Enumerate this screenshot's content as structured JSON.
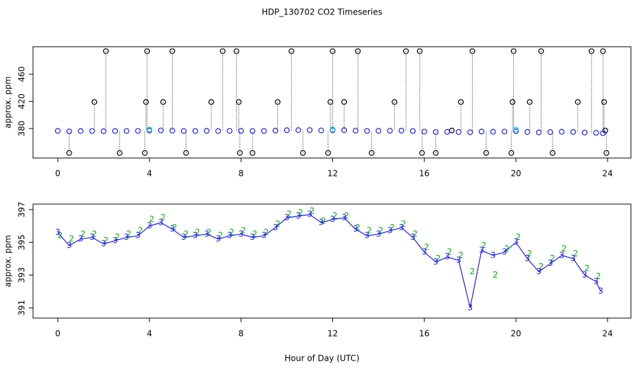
{
  "chart_data": [
    {
      "type": "scatter",
      "title": "HDP_130702  CO2 Timeseries",
      "ylabel": "approx. ppm",
      "xlim": [
        -1.08,
        25.02
      ],
      "xticks": [
        0,
        4,
        8,
        12,
        16,
        20,
        24
      ],
      "ylim": [
        336.5,
        500.5
      ],
      "yticks": [
        380,
        420,
        460
      ],
      "series": [
        {
          "color": "#000000",
          "marker": "circle",
          "drop_lines": true,
          "x": [
            0.5,
            1.6,
            2.1,
            2.7,
            3.8,
            3.85,
            3.9,
            4.6,
            5.0,
            5.6,
            6.7,
            7.2,
            7.8,
            7.9,
            7.95,
            8.5,
            9.6,
            10.2,
            10.7,
            11.8,
            11.9,
            12.0,
            12.5,
            13.1,
            13.7,
            14.7,
            15.2,
            15.8,
            15.9,
            16.5,
            17.2,
            17.6,
            18.1,
            18.7,
            19.8,
            19.85,
            19.9,
            20.6,
            21.1,
            21.6,
            22.7,
            23.3,
            23.8,
            23.85,
            23.9,
            23.95
          ],
          "values": [
            344,
            419,
            494,
            344,
            344,
            419,
            494,
            419,
            494,
            344,
            419,
            494,
            494,
            419,
            344,
            344,
            419,
            494,
            344,
            344,
            419,
            494,
            419,
            494,
            344,
            419,
            494,
            494,
            344,
            344,
            377,
            419,
            494,
            344,
            344,
            419,
            494,
            419,
            494,
            344,
            419,
            494,
            494,
            419,
            377,
            344
          ]
        },
        {
          "color": "#1a1aff",
          "marker": "circle",
          "x": [
            0,
            0.5,
            1,
            1.5,
            2,
            2.5,
            3,
            3.5,
            4,
            4.5,
            5,
            5.5,
            6,
            6.5,
            7,
            7.5,
            8,
            8.5,
            9,
            9.5,
            10,
            10.5,
            11,
            11.5,
            12,
            12.5,
            13,
            13.5,
            14,
            14.5,
            15,
            15.5,
            16,
            16.5,
            17,
            17.5,
            18,
            18.5,
            19,
            19.5,
            20,
            20.5,
            21,
            21.5,
            22,
            22.5,
            23,
            23.5,
            23.8
          ],
          "values": [
            376.5,
            375.8,
            376.2,
            376.3,
            376,
            376.2,
            376.3,
            376.4,
            377,
            377.2,
            376.8,
            376.3,
            376.4,
            376.5,
            376.2,
            376.4,
            376.5,
            376.3,
            376.4,
            376.9,
            377.5,
            377.6,
            377.7,
            377.2,
            377.4,
            377.5,
            376.8,
            376.4,
            376.5,
            376.7,
            376.9,
            376.3,
            375.4,
            374.8,
            375.1,
            374.9,
            374.5,
            375.5,
            375.2,
            375.4,
            376,
            375,
            374.2,
            374.7,
            375.2,
            375,
            374,
            373.6,
            373
          ]
        },
        {
          "color": "#00d8e0",
          "marker": "circle",
          "x": [
            4,
            12,
            20
          ],
          "values": [
            378.5,
            378.5,
            378.5
          ]
        }
      ]
    },
    {
      "type": "scatter",
      "ylabel": "approx. ppm",
      "xlabel": "Hour of Day (UTC)",
      "xlim": [
        -1.08,
        25.02
      ],
      "xticks": [
        0,
        4,
        8,
        12,
        16,
        20,
        24
      ],
      "ylim": [
        390.37,
        397.34
      ],
      "yticks": [
        391,
        393,
        395,
        397
      ],
      "series": [
        {
          "color": "#00b000",
          "marker": "2",
          "x": [
            0.1,
            0.6,
            1.1,
            1.6,
            2.1,
            2.6,
            3.1,
            3.6,
            4.1,
            4.6,
            5.1,
            5.6,
            6.1,
            6.6,
            7.1,
            7.6,
            8.1,
            8.6,
            9.1,
            9.6,
            10.1,
            10.6,
            11.1,
            11.6,
            12.1,
            12.6,
            13.1,
            13.6,
            14.1,
            14.6,
            15.1,
            15.6,
            16.1,
            16.6,
            17.1,
            17.6,
            18.1,
            18.6,
            19.1,
            19.6,
            20.1,
            20.6,
            21.1,
            21.6,
            22.1,
            22.6,
            23.1,
            23.6
          ],
          "values": [
            395.4,
            395.2,
            395.5,
            395.5,
            395.1,
            395.3,
            395.5,
            395.7,
            396.4,
            396.5,
            395.9,
            395.5,
            395.6,
            395.6,
            395.4,
            395.6,
            395.7,
            395.5,
            395.6,
            396.1,
            396.7,
            396.8,
            396.9,
            396.3,
            396.6,
            396.6,
            395.9,
            395.7,
            395.7,
            395.9,
            396.1,
            395.5,
            394.7,
            394.0,
            394.4,
            394.2,
            393.2,
            394.8,
            393.0,
            394.6,
            395.3,
            394.3,
            393.5,
            394.0,
            394.6,
            394.3,
            393.4,
            392.9
          ]
        },
        {
          "color": "#1a1aff",
          "marker": "3",
          "line": "solid",
          "x": [
            0,
            0.5,
            1,
            1.5,
            2,
            2.5,
            3,
            3.5,
            4,
            4.5,
            5,
            5.5,
            6,
            6.5,
            7,
            7.5,
            8,
            8.5,
            9,
            9.5,
            10,
            10.5,
            11,
            11.5,
            12,
            12.5,
            13,
            13.5,
            14,
            14.5,
            15,
            15.5,
            16,
            16.5,
            17,
            17.5,
            18,
            18.5,
            19,
            19.5,
            20,
            20.5,
            21,
            21.5,
            22,
            22.5,
            23,
            23.5,
            23.7
          ],
          "values": [
            395.6,
            394.8,
            395.2,
            395.3,
            394.9,
            395.1,
            395.3,
            395.4,
            396.0,
            396.2,
            395.8,
            395.3,
            395.4,
            395.5,
            395.2,
            395.4,
            395.5,
            395.3,
            395.4,
            395.9,
            396.5,
            396.6,
            396.7,
            396.2,
            396.4,
            396.5,
            395.8,
            395.4,
            395.5,
            395.7,
            395.9,
            395.3,
            394.4,
            393.8,
            394.1,
            393.9,
            391.0,
            394.5,
            394.2,
            394.4,
            395.0,
            394.0,
            393.2,
            393.7,
            394.2,
            394.0,
            393.0,
            392.6,
            392.0
          ]
        }
      ]
    }
  ]
}
